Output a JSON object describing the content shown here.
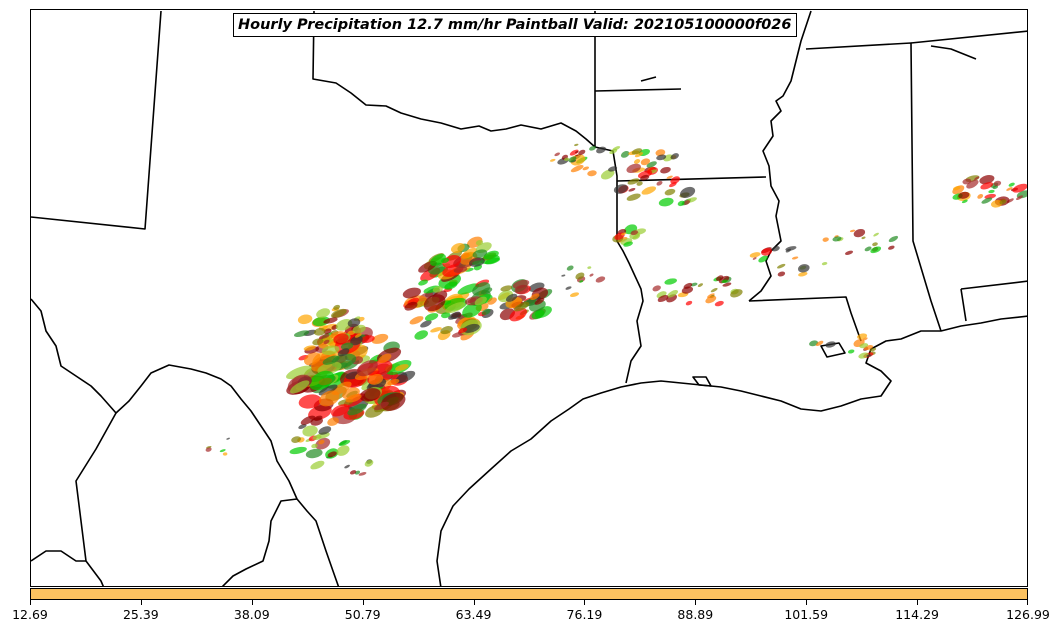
{
  "title": "Hourly Precipitation 12.7 mm/hr Paintball Valid: 202105100000f026",
  "colorbar": {
    "color": "#fcc260",
    "tick_labels": [
      "12.69",
      "25.39",
      "38.09",
      "50.79",
      "63.49",
      "76.19",
      "88.89",
      "101.59",
      "114.29",
      "126.99"
    ]
  },
  "member_colors": [
    "#ff0000",
    "#ff7f00",
    "#ffa500",
    "#00cc00",
    "#228b22",
    "#9acd32",
    "#808000",
    "#8b0000",
    "#a52a2a",
    "#333333"
  ]
}
